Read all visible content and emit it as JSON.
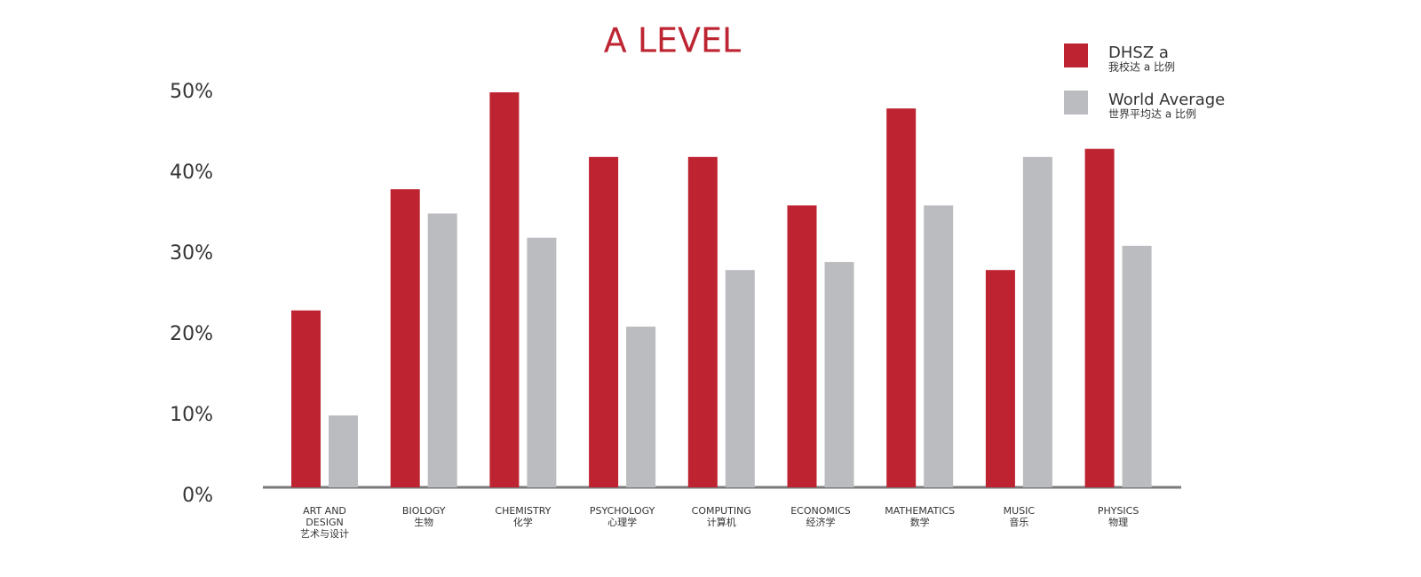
{
  "chart_data": {
    "type": "bar",
    "title": "A LEVEL",
    "categories": [
      "ART AND\nDESIGN",
      "BIOLOGY",
      "CHEMISTRY",
      "PSYCHOLOGY",
      "COMPUTING",
      "ECONOMICS",
      "MATHEMATICS",
      "MUSIC",
      "PHYSICS"
    ],
    "categories_zh": [
      "艺术与设计",
      "生物",
      "化学",
      "心理学",
      "计算机",
      "经济学",
      "数学",
      "音乐",
      "物理"
    ],
    "series": [
      {
        "name": "DHSZ a",
        "subtitle": "我校达 a 比例",
        "color": "#bd2330",
        "values": [
          23,
          38,
          50,
          42,
          42,
          36,
          48,
          28,
          43
        ]
      },
      {
        "name": "World Average",
        "subtitle": "世界平均达 a 比例",
        "color": "#bbbcbf",
        "values": [
          10,
          35,
          32,
          21,
          28,
          29,
          36,
          42,
          31
        ]
      }
    ],
    "ylim": [
      0,
      50
    ],
    "yticks": [
      {
        "value": 0,
        "label": "0%"
      },
      {
        "value": 10,
        "label": "10%"
      },
      {
        "value": 20,
        "label": "20%"
      },
      {
        "value": 30,
        "label": "30%"
      },
      {
        "value": 40,
        "label": "40%"
      },
      {
        "value": 50,
        "label": "50%"
      }
    ],
    "legend": "top-right"
  }
}
